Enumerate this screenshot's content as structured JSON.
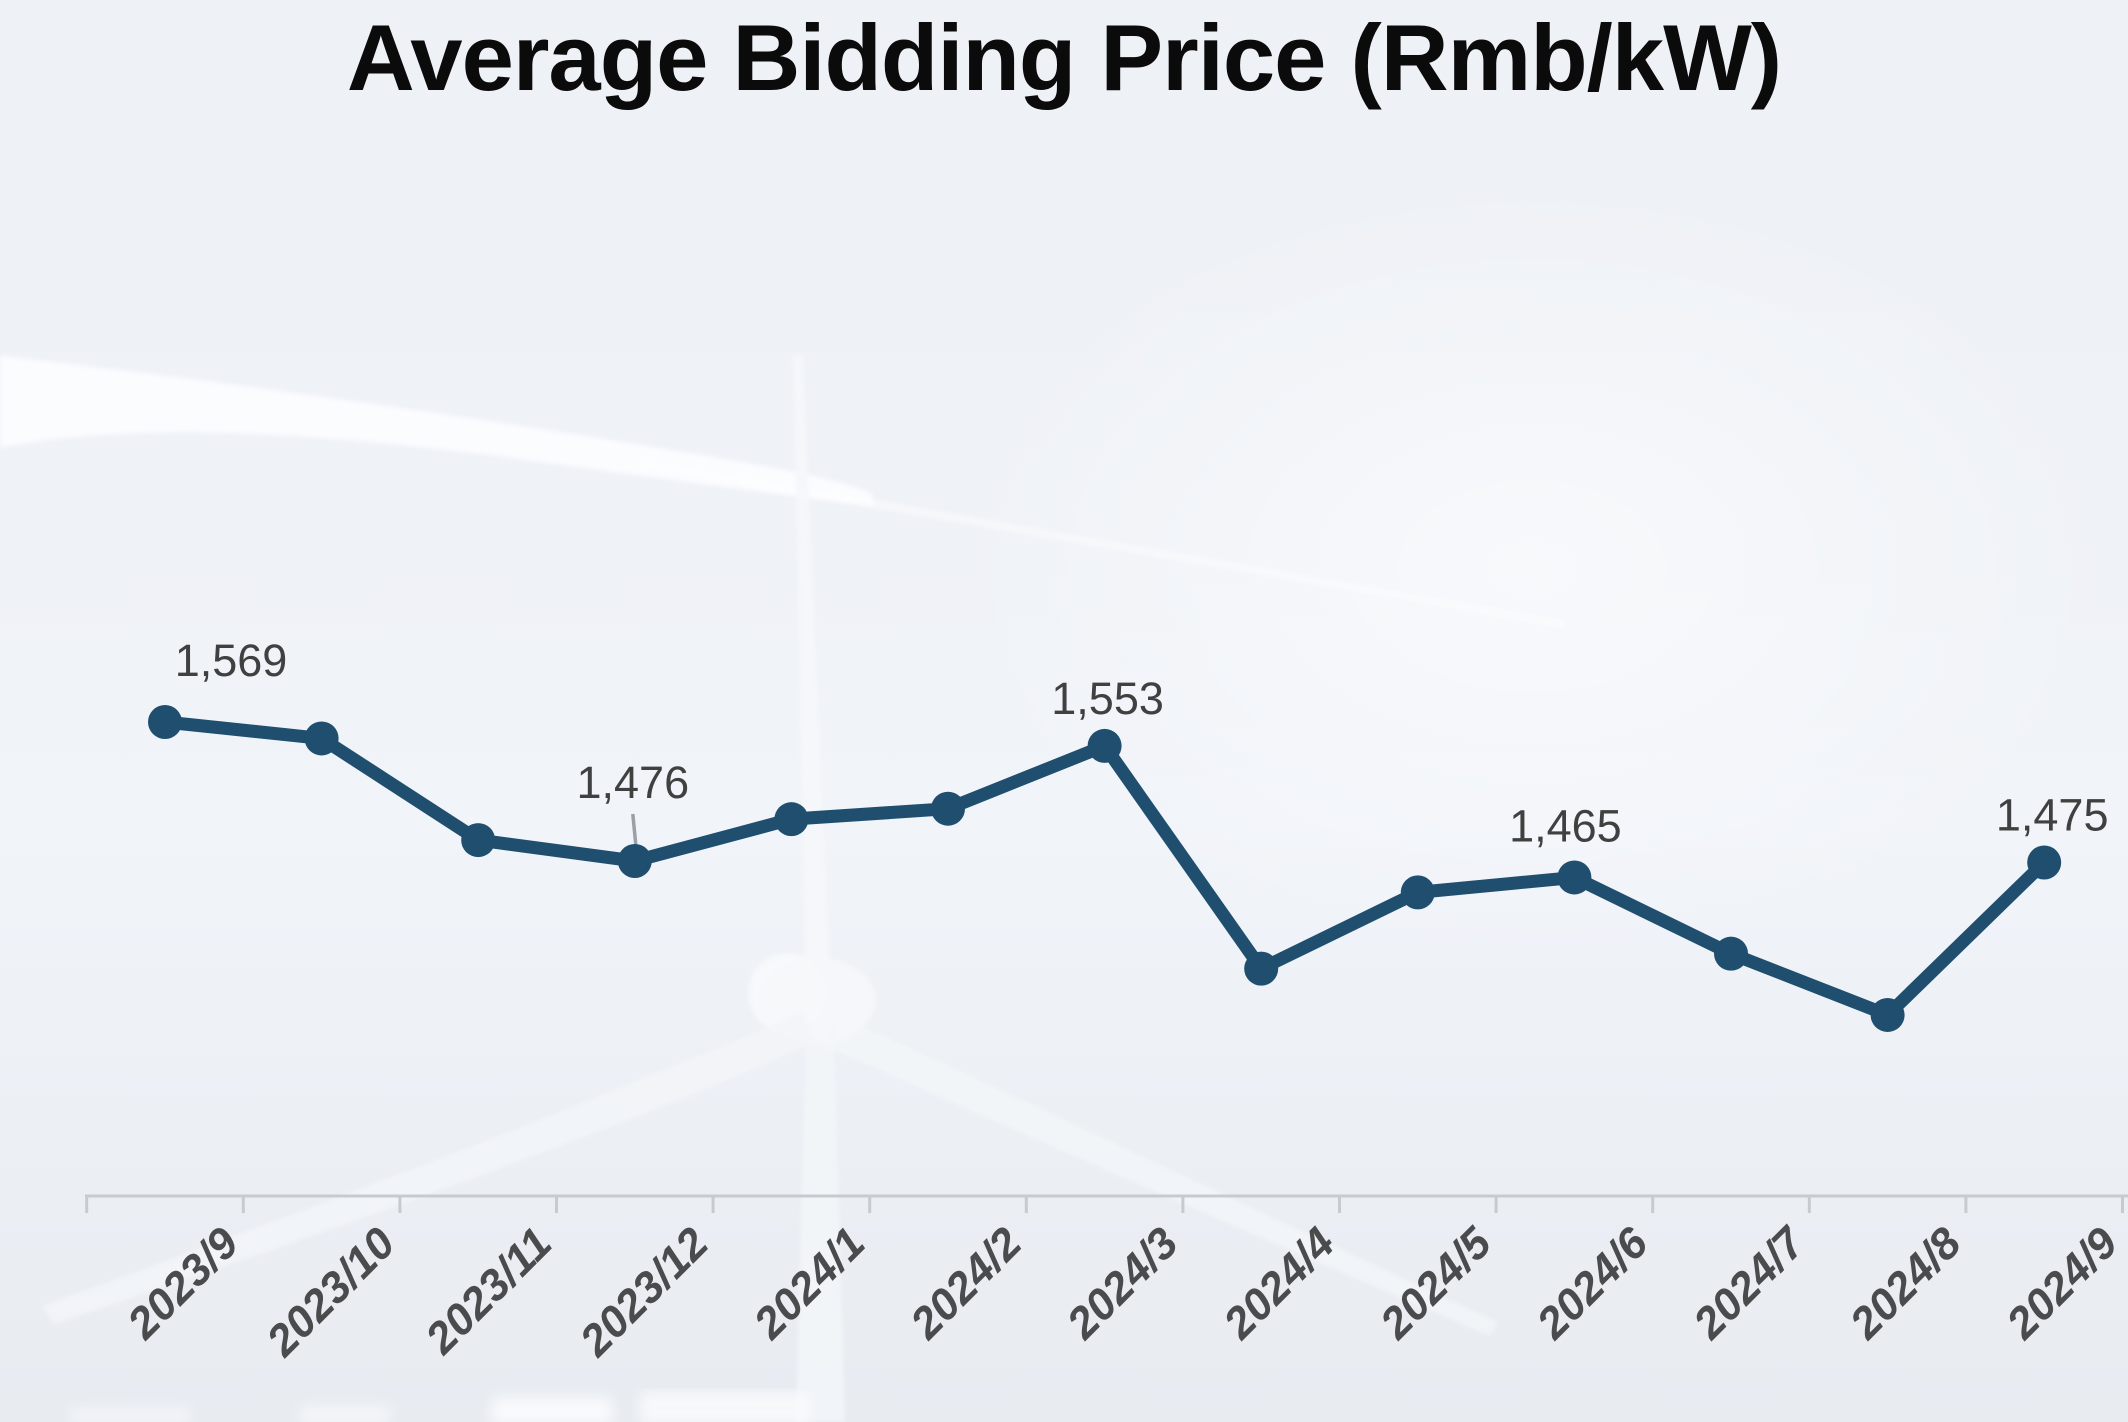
{
  "title": "Average Bidding Price (Rmb/kW)",
  "background": {
    "watermark_icon": "wind-turbine-photo",
    "sky_top": "#eef1f6",
    "sky_highlight": "#f3f6fa",
    "sky_bottom": "#e8ecf1"
  },
  "chart_data": {
    "type": "line",
    "title": "Average Bidding Price (Rmb/kW)",
    "unit": "Rmb/kW",
    "categories": [
      "2023/9",
      "2023/10",
      "2023/11",
      "2023/12",
      "2024/1",
      "2024/2",
      "2024/3",
      "2024/4",
      "2024/5",
      "2024/6",
      "2024/7",
      "2024/8",
      "2024/9"
    ],
    "series": [
      {
        "name": "Average bidding price",
        "values": [
          1569,
          1558,
          1490,
          1476,
          1504,
          1511,
          1553,
          1404,
          1455,
          1465,
          1414,
          1373,
          1475
        ]
      }
    ],
    "data_labels": [
      {
        "index": 0,
        "text": "1,569",
        "leader_line": false
      },
      {
        "index": 3,
        "text": "1,476",
        "leader_line": true
      },
      {
        "index": 6,
        "text": "1,553",
        "leader_line": false
      },
      {
        "index": 9,
        "text": "1,465",
        "leader_line": false
      },
      {
        "index": 12,
        "text": "1,475",
        "leader_line": false
      }
    ],
    "ylim": [
      1340,
      1650
    ],
    "xlabel": "",
    "ylabel": "",
    "gridlines": false,
    "legend": "none",
    "line_color": "#1f4e6e",
    "marker_color": "#1f4e6e",
    "data_label_color": "#3f4040",
    "axis_color": "#c7cbd1",
    "tick_label_color": "#4a4b4d",
    "leader_line_color": "#9aa0a6"
  }
}
